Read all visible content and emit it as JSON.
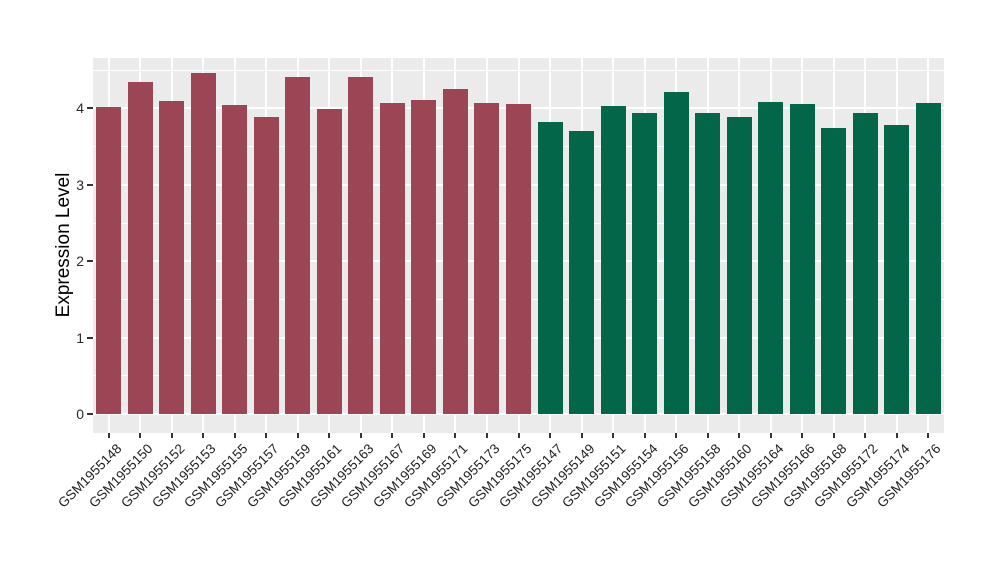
{
  "chart_data": {
    "type": "bar",
    "title": "",
    "xlabel": "",
    "ylabel": "Expression Level",
    "ylim": [
      0,
      4.66
    ],
    "yticks": [
      0,
      1,
      2,
      3,
      4
    ],
    "minor_yticks": [
      0.5,
      1.5,
      2.5,
      3.5,
      4.5
    ],
    "grid": "white major+minor horizontal and vertical category gridlines on gray panel",
    "legend_position": "none",
    "panel_background": "#ebebeb",
    "gridline_color": "#ffffff",
    "colors": {
      "group1": "#9c4554",
      "group2": "#036648"
    },
    "bars": [
      {
        "label": "GSM1955148",
        "value": 4.02,
        "group": "group1"
      },
      {
        "label": "GSM1955150",
        "value": 4.35,
        "group": "group1"
      },
      {
        "label": "GSM1955152",
        "value": 4.1,
        "group": "group1"
      },
      {
        "label": "GSM1955153",
        "value": 4.46,
        "group": "group1"
      },
      {
        "label": "GSM1955155",
        "value": 4.04,
        "group": "group1"
      },
      {
        "label": "GSM1955157",
        "value": 3.89,
        "group": "group1"
      },
      {
        "label": "GSM1955159",
        "value": 4.41,
        "group": "group1"
      },
      {
        "label": "GSM1955161",
        "value": 3.99,
        "group": "group1"
      },
      {
        "label": "GSM1955163",
        "value": 4.41,
        "group": "group1"
      },
      {
        "label": "GSM1955167",
        "value": 4.07,
        "group": "group1"
      },
      {
        "label": "GSM1955169",
        "value": 4.11,
        "group": "group1"
      },
      {
        "label": "GSM1955171",
        "value": 4.25,
        "group": "group1"
      },
      {
        "label": "GSM1955173",
        "value": 4.07,
        "group": "group1"
      },
      {
        "label": "GSM1955175",
        "value": 4.06,
        "group": "group1"
      },
      {
        "label": "GSM1955147",
        "value": 3.82,
        "group": "group2"
      },
      {
        "label": "GSM1955149",
        "value": 3.71,
        "group": "group2"
      },
      {
        "label": "GSM1955151",
        "value": 4.03,
        "group": "group2"
      },
      {
        "label": "GSM1955154",
        "value": 3.94,
        "group": "group2"
      },
      {
        "label": "GSM1955156",
        "value": 4.21,
        "group": "group2"
      },
      {
        "label": "GSM1955158",
        "value": 3.94,
        "group": "group2"
      },
      {
        "label": "GSM1955160",
        "value": 3.89,
        "group": "group2"
      },
      {
        "label": "GSM1955164",
        "value": 4.09,
        "group": "group2"
      },
      {
        "label": "GSM1955166",
        "value": 4.06,
        "group": "group2"
      },
      {
        "label": "GSM1955168",
        "value": 3.74,
        "group": "group2"
      },
      {
        "label": "GSM1955172",
        "value": 3.94,
        "group": "group2"
      },
      {
        "label": "GSM1955174",
        "value": 3.78,
        "group": "group2"
      },
      {
        "label": "GSM1955176",
        "value": 4.07,
        "group": "group2"
      }
    ]
  }
}
